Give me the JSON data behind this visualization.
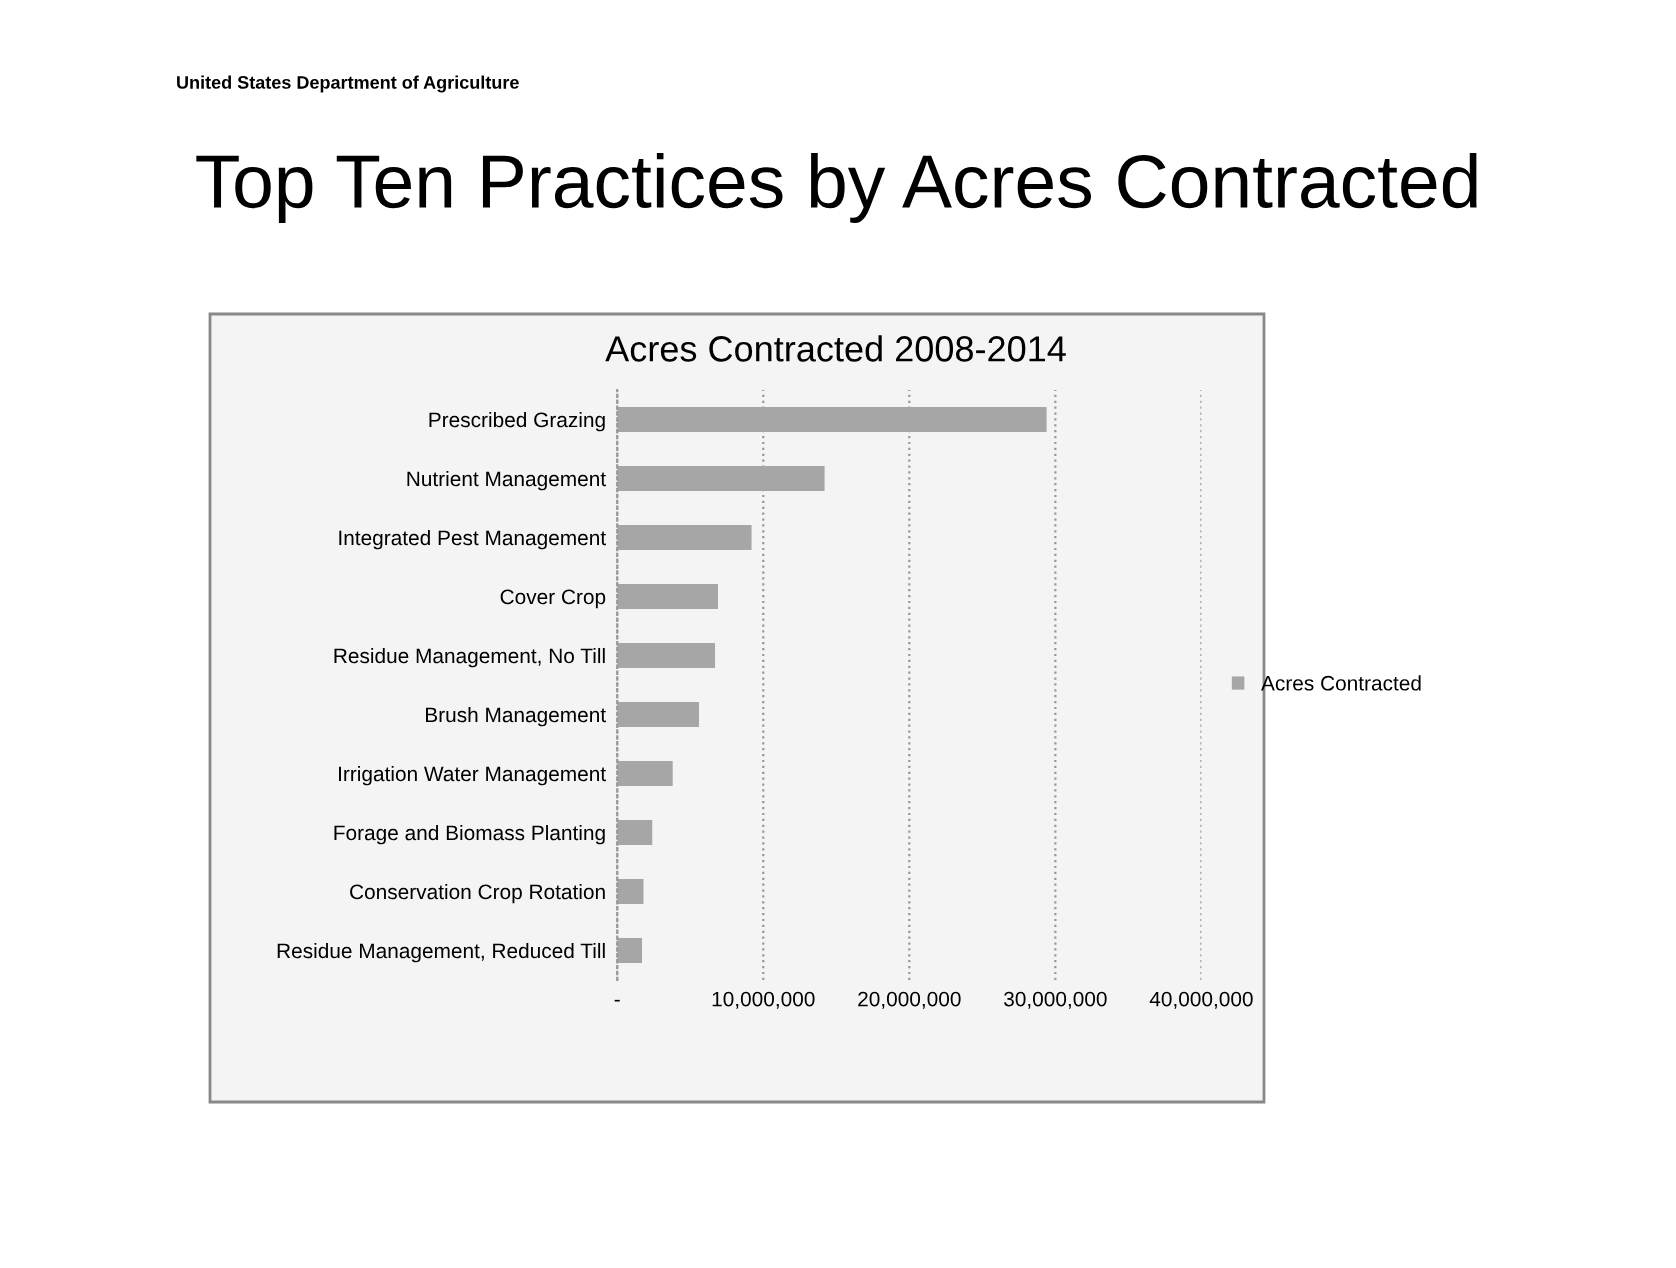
{
  "chart_data": {
    "type": "bar",
    "orientation": "horizontal",
    "title": "Top Ten Practices by Acres Contracted",
    "subtitle": "Acres Contracted 2008-2014",
    "annotations": [
      "United States Department of Agriculture"
    ],
    "categories": [
      "Prescribed Grazing",
      "Nutrient Management",
      "Integrated Pest Management",
      "Cover Crop",
      "Residue Management, No Till",
      "Brush Management",
      "Irrigation Water Management",
      "Forage and Biomass Planting",
      "Conservation Crop Rotation",
      "Residue Management, Reduced Till"
    ],
    "series": [
      {
        "name": "Acres Contracted",
        "color": "#a6a6a6",
        "values": [
          29400000,
          14200000,
          9200000,
          6900000,
          6700000,
          5600000,
          3800000,
          2400000,
          1800000,
          1700000
        ]
      }
    ],
    "xlim": [
      0,
      40000000
    ],
    "xticks": [
      {
        "value": 0,
        "label": "-"
      },
      {
        "value": 10000000,
        "label": "10,000,000"
      },
      {
        "value": 20000000,
        "label": "20,000,000"
      },
      {
        "value": 30000000,
        "label": "30,000,000"
      },
      {
        "value": 40000000,
        "label": "40,000,000"
      }
    ],
    "grid": "x",
    "legend": "right"
  }
}
